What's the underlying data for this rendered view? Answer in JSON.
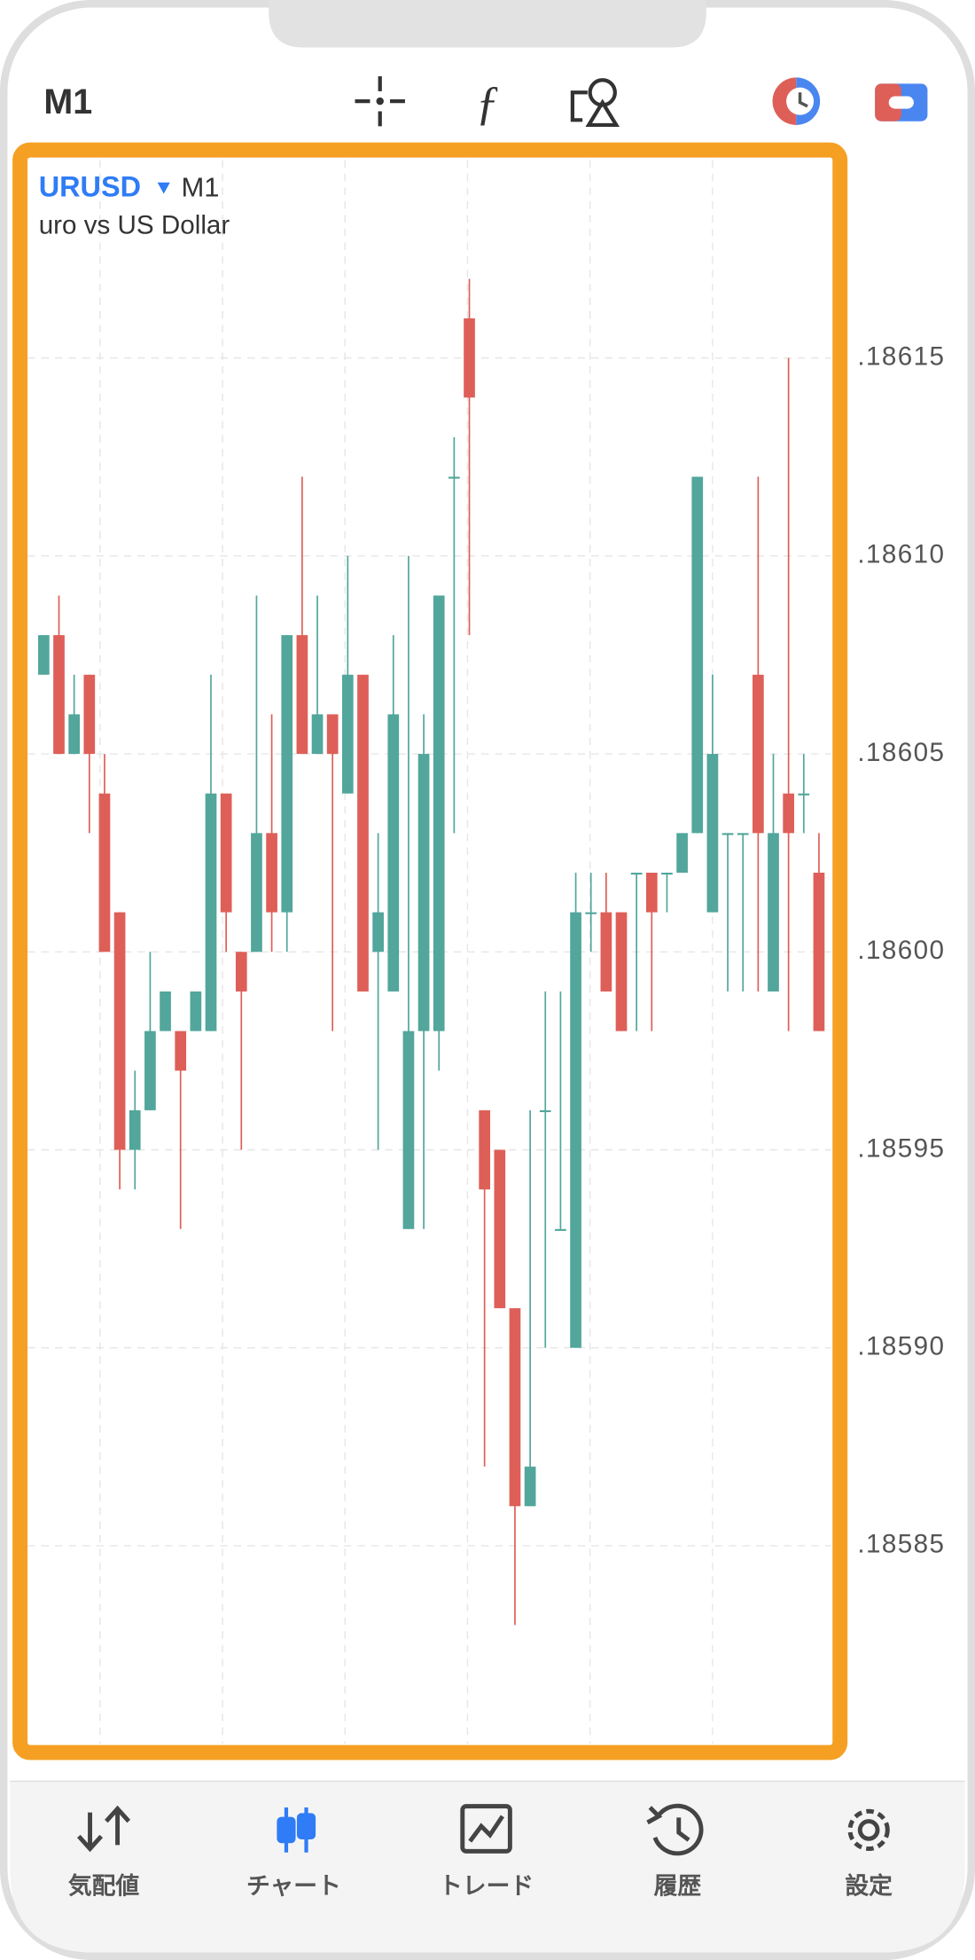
{
  "header": {
    "timeframe": "M1"
  },
  "chart_data": {
    "type": "candlestick",
    "symbol": "URUSD",
    "timeframe": "M1",
    "subtitle": "uro vs US Dollar",
    "up_color": "#52a69b",
    "down_color": "#de5f58",
    "grid": true,
    "ylim": [
      1.1858,
      1.1862
    ],
    "yticks": [
      {
        "value": 1.18615,
        "label": ".18615"
      },
      {
        "value": 1.1861,
        "label": ".18610"
      },
      {
        "value": 1.18605,
        "label": ".18605"
      },
      {
        "value": 1.186,
        "label": ".18600"
      },
      {
        "value": 1.18595,
        "label": ".18595"
      },
      {
        "value": 1.1859,
        "label": ".18590"
      },
      {
        "value": 1.18585,
        "label": ".18585"
      }
    ],
    "open": [
      1.18607,
      1.18608,
      1.18605,
      1.18607,
      1.18604,
      1.18601,
      1.18595,
      1.18596,
      1.18598,
      1.18598,
      1.18598,
      1.18598,
      1.18604,
      1.186,
      1.186,
      1.18603,
      1.18601,
      1.18608,
      1.18605,
      1.18606,
      1.18604,
      1.18607,
      1.186,
      1.18599,
      1.18593,
      1.18598,
      1.18598,
      1.18612,
      1.18616,
      1.18596,
      1.18595,
      1.18591,
      1.18586,
      1.18596,
      1.18593,
      1.1859,
      1.18601,
      1.18601,
      1.18601,
      1.18602,
      1.18602,
      1.18602,
      1.18602,
      1.18603,
      1.18601,
      1.18603,
      1.18603,
      1.18607,
      1.18599,
      1.18604,
      1.18604,
      1.18602
    ],
    "high": [
      1.18608,
      1.18609,
      1.18607,
      1.18607,
      1.18605,
      1.18601,
      1.18597,
      1.186,
      1.18599,
      1.18598,
      1.18599,
      1.18607,
      1.18604,
      1.186,
      1.18609,
      1.18606,
      1.18608,
      1.18612,
      1.18609,
      1.18606,
      1.1861,
      1.18607,
      1.18603,
      1.18608,
      1.1861,
      1.18606,
      1.18609,
      1.18613,
      1.18617,
      1.18596,
      1.18595,
      1.18591,
      1.18596,
      1.18599,
      1.18599,
      1.18602,
      1.18602,
      1.18602,
      1.18601,
      1.18602,
      1.18602,
      1.18602,
      1.18603,
      1.18612,
      1.18607,
      1.18603,
      1.18603,
      1.18612,
      1.18605,
      1.18615,
      1.18605,
      1.18603
    ],
    "low": [
      1.18607,
      1.18605,
      1.18605,
      1.18603,
      1.186,
      1.18594,
      1.18594,
      1.18596,
      1.18598,
      1.18593,
      1.18598,
      1.18598,
      1.186,
      1.18595,
      1.186,
      1.186,
      1.186,
      1.18605,
      1.18605,
      1.18598,
      1.18604,
      1.18599,
      1.18595,
      1.18599,
      1.18593,
      1.18593,
      1.18597,
      1.18603,
      1.18608,
      1.18587,
      1.18591,
      1.18583,
      1.18586,
      1.1859,
      1.18593,
      1.1859,
      1.186,
      1.18599,
      1.18598,
      1.18598,
      1.18598,
      1.18601,
      1.18602,
      1.18603,
      1.18601,
      1.18599,
      1.18599,
      1.18599,
      1.18599,
      1.18598,
      1.18603,
      1.18598
    ],
    "close": [
      1.18608,
      1.18605,
      1.18606,
      1.18605,
      1.186,
      1.18595,
      1.18596,
      1.18598,
      1.18599,
      1.18597,
      1.18599,
      1.18604,
      1.18601,
      1.18599,
      1.18603,
      1.18601,
      1.18608,
      1.18605,
      1.18606,
      1.18605,
      1.18607,
      1.18599,
      1.18601,
      1.18606,
      1.18598,
      1.18605,
      1.18609,
      1.18612,
      1.18614,
      1.18594,
      1.18591,
      1.18586,
      1.18587,
      1.18596,
      1.18593,
      1.18601,
      1.18601,
      1.18599,
      1.18598,
      1.18602,
      1.18601,
      1.18602,
      1.18603,
      1.18612,
      1.18605,
      1.18603,
      1.18603,
      1.18603,
      1.18603,
      1.18603,
      1.18604,
      1.18598
    ]
  },
  "nav": {
    "items": [
      {
        "label": "気配値"
      },
      {
        "label": "チャート",
        "active": true
      },
      {
        "label": "トレード"
      },
      {
        "label": "履歴"
      },
      {
        "label": "設定"
      }
    ]
  }
}
